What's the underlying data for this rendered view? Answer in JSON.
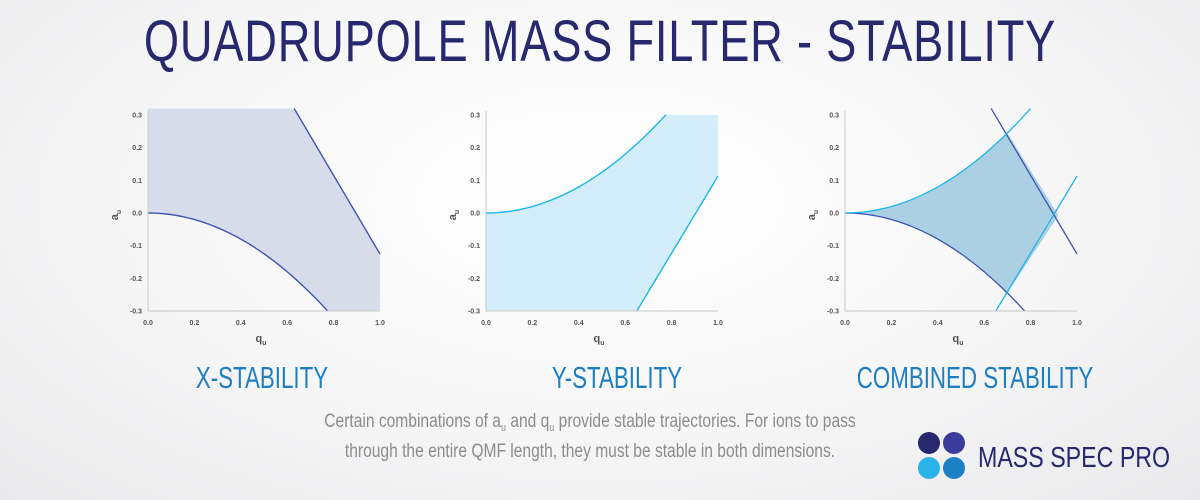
{
  "title": "QUADRUPOLE MASS FILTER - STABILITY",
  "axes": {
    "x_ticks": [
      "0.0",
      "0.2",
      "0.4",
      "0.6",
      "0.8",
      "1.0"
    ],
    "y_ticks": [
      "0.3",
      "0.2",
      "0.1",
      "0.0",
      "-0.1",
      "-0.2",
      "-0.3"
    ],
    "xlabel_main": "q",
    "xlabel_sub": "u",
    "ylabel_main": "a",
    "ylabel_sub": "u"
  },
  "panels": [
    {
      "caption": "X-STABILITY",
      "region": "x"
    },
    {
      "caption": "Y-STABILITY",
      "region": "y"
    },
    {
      "caption": "COMBINED STABILITY",
      "region": "combined"
    }
  ],
  "colors": {
    "title": "#28286f",
    "x_fill": "#d6dcea",
    "x_line": "#3f56b0",
    "y_fill": "#d3eefa",
    "y_line": "#1cb6e8",
    "combined_fill": "#a7cde3",
    "caption_blue": "#1d7fc1",
    "brand_dot_1": "#28286f",
    "brand_dot_2": "#3b3b9a",
    "brand_dot_3": "#2bb4e8",
    "brand_dot_4": "#1b7fc2"
  },
  "footer": {
    "line1_a": "Certain combinations of a",
    "line1_sub1": "u",
    "line1_b": " and q",
    "line1_sub2": "u",
    "line1_c": " provide stable trajectories.  For ions to pass",
    "line2": "through the entire QMF length, they must be stable in both dimensions."
  },
  "brand": {
    "name": "MASS SPEC PRO",
    "logo_icon": "four-dots-logo"
  }
}
